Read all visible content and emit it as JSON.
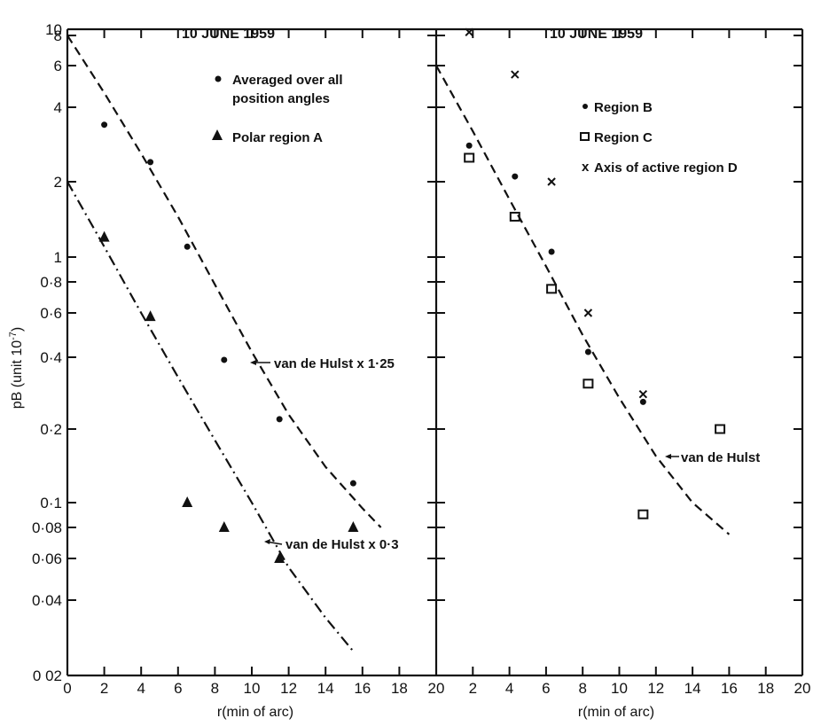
{
  "figure": {
    "panels": [
      {
        "id": "left",
        "title": "10 JUNE 1959",
        "xlabel": "r(min of arc)",
        "ylabel": "pB (unit 10^-7)",
        "legend": [
          {
            "marker": "dot",
            "label_line1": "Averaged over all",
            "label_line2": "position angles"
          },
          {
            "marker": "triangle",
            "label_line1": "Polar region A",
            "label_line2": ""
          }
        ],
        "annotations": [
          {
            "text": "van de Hulst x 1·25"
          },
          {
            "text": "van de Hulst x 0·3"
          }
        ]
      },
      {
        "id": "right",
        "title": "10 JUNE 1959",
        "xlabel": "r(min of arc)",
        "legend": [
          {
            "marker": "dot",
            "label": "Region  B"
          },
          {
            "marker": "square",
            "label": "Region  C"
          },
          {
            "marker": "cross",
            "label": "Axis of active region D"
          }
        ],
        "annotations": [
          {
            "text": "van de Hulst"
          }
        ]
      }
    ],
    "y_tick_labels": [
      "10",
      "8",
      "6",
      "4",
      "2",
      "1",
      "0·8",
      "0·6",
      "0·4",
      "0·2",
      "0·1",
      "0·08",
      "0·06",
      "0·04",
      "0 02"
    ],
    "x_tick_labels_left": [
      "0",
      "2",
      "4",
      "6",
      "8",
      "10",
      "12",
      "14",
      "16",
      "18",
      "20"
    ],
    "x_tick_labels_right": [
      "2",
      "4",
      "6",
      "8",
      "10",
      "12",
      "14",
      "16",
      "18",
      "20"
    ]
  },
  "chart_data": [
    {
      "type": "scatter",
      "title": "10 JUNE 1959",
      "xlabel": "r(min of arc)",
      "ylabel": "pB (unit 10^-7)",
      "xlim": [
        0,
        20
      ],
      "ylim": [
        0.02,
        10
      ],
      "yscale": "log",
      "grid": false,
      "legend_position": "upper right",
      "series": [
        {
          "name": "Averaged over all position angles",
          "marker": "dot",
          "x": [
            2,
            4.5,
            6.5,
            8.5,
            11.5,
            15.5
          ],
          "y": [
            3.4,
            2.4,
            1.1,
            0.39,
            0.22,
            0.12
          ]
        },
        {
          "name": "Polar region A",
          "marker": "triangle",
          "x": [
            2,
            4.5,
            6.5,
            8.5,
            11.5,
            15.5
          ],
          "y": [
            1.2,
            0.58,
            0.1,
            0.08,
            0.06,
            0.08
          ]
        },
        {
          "name": "van de Hulst x 1·25",
          "type": "line",
          "style": "dashed",
          "x": [
            0,
            2,
            4,
            6,
            8,
            10,
            12,
            14,
            16,
            17
          ],
          "y": [
            8.0,
            4.6,
            2.6,
            1.45,
            0.78,
            0.42,
            0.23,
            0.14,
            0.095,
            0.08
          ]
        },
        {
          "name": "van de Hulst x 0·3",
          "type": "line",
          "style": "dash-dot",
          "x": [
            0,
            2,
            4,
            6,
            8,
            10,
            12,
            14,
            15.5
          ],
          "y": [
            2.0,
            1.1,
            0.6,
            0.33,
            0.18,
            0.1,
            0.055,
            0.034,
            0.025
          ]
        }
      ]
    },
    {
      "type": "scatter",
      "title": "10 JUNE 1959",
      "xlabel": "r(min of arc)",
      "ylabel": "pB (unit 10^-7)",
      "xlim": [
        0,
        20
      ],
      "ylim": [
        0.02,
        10
      ],
      "yscale": "log",
      "grid": false,
      "legend_position": "upper right",
      "series": [
        {
          "name": "Region B",
          "marker": "dot",
          "x": [
            1.8,
            4.3,
            6.3,
            8.3,
            11.3
          ],
          "y": [
            2.8,
            2.1,
            1.05,
            0.42,
            0.26
          ]
        },
        {
          "name": "Region C",
          "marker": "square",
          "x": [
            1.8,
            4.3,
            6.3,
            8.3,
            11.3,
            15.5
          ],
          "y": [
            2.5,
            1.45,
            0.75,
            0.31,
            0.09,
            0.2
          ]
        },
        {
          "name": "Axis of active region D",
          "marker": "cross",
          "x": [
            1.8,
            4.3,
            6.3,
            8.3,
            11.3
          ],
          "y": [
            9.0,
            5.5,
            2.0,
            0.6,
            0.28
          ]
        },
        {
          "name": "van de Hulst",
          "type": "line",
          "style": "dashed",
          "x": [
            0,
            2,
            4,
            6,
            8,
            10,
            12,
            14,
            16
          ],
          "y": [
            6.0,
            3.2,
            1.7,
            0.92,
            0.49,
            0.27,
            0.155,
            0.1,
            0.075
          ]
        }
      ]
    }
  ]
}
